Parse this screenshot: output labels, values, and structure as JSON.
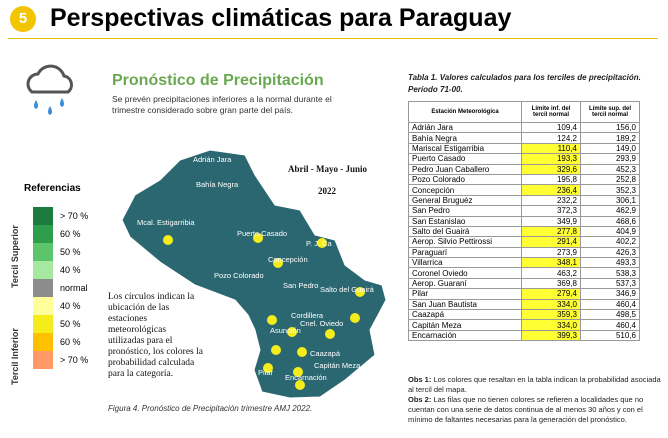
{
  "header": {
    "number": "5",
    "title": "Perspectivas climáticas para Paraguay"
  },
  "forecast": {
    "title": "Pronóstico de Precipitación",
    "description": "Se prevén precipitaciones inferiores a la normal durante el trimestre considerado sobre gran parte del país."
  },
  "map": {
    "period": "Abril - Mayo - Junio",
    "year": "2022",
    "labels": [
      "Adrián Jara",
      "Bahía Negra",
      "Mcal. Estigarribia",
      "Puerto Casado",
      "P. J. Ca",
      "Concepción",
      "Pozo Colorado",
      "San Pedro",
      "Salto del Guairá",
      "Cordillera",
      "Asunción",
      "Cnel. Oviedo",
      "Caazapá",
      "Capitán Meza",
      "Pilar",
      "Encarnación"
    ],
    "note": [
      "Los círculos indican la",
      "ubicación de las",
      "estaciones",
      "meteorológicas",
      "utilizadas para el",
      "pronóstico, los colores la",
      "probabilidad calculada",
      "para la categoría."
    ],
    "caption": "Figura 4. Pronóstico de Precipitación trimestre AMJ 2022."
  },
  "references": {
    "title": "Referencias",
    "upper_label": "Tercil Superior",
    "lower_label": "Tercil Inferior",
    "items": [
      {
        "label": "> 70 %",
        "color": "#1b7a3c"
      },
      {
        "label": "60 %",
        "color": "#2f9e4c"
      },
      {
        "label": "50 %",
        "color": "#5cc46a"
      },
      {
        "label": "40 %",
        "color": "#a6e8a0"
      },
      {
        "label": "normal",
        "color": "#8c8c8c"
      },
      {
        "label": "40 %",
        "color": "#ffff99"
      },
      {
        "label": "50 %",
        "color": "#f5ec1c"
      },
      {
        "label": "60 %",
        "color": "#ffc000"
      },
      {
        "label": "> 70 %",
        "color": "#ff9966"
      }
    ]
  },
  "table": {
    "title": "Tabla 1. Valores calculados para los terciles de precipitación. Período 71-00.",
    "headers": [
      "Estación Meteorológica",
      "Límite inf. del tercil normal",
      "Límite sup. del tercil normal"
    ],
    "highlight_color": "#ffff33",
    "rows": [
      {
        "station": "Adrián Jara",
        "lower": "109,4",
        "upper": "156,0",
        "highlight": false
      },
      {
        "station": "Bahía Negra",
        "lower": "124,2",
        "upper": "189,2",
        "highlight": false
      },
      {
        "station": "Mariscal Estigarribia",
        "lower": "110,4",
        "upper": "149,0",
        "highlight": true
      },
      {
        "station": "Puerto Casado",
        "lower": "193,3",
        "upper": "293,9",
        "highlight": true
      },
      {
        "station": "Pedro Juan Caballero",
        "lower": "329,6",
        "upper": "452,3",
        "highlight": true
      },
      {
        "station": "Pozo Colorado",
        "lower": "195,8",
        "upper": "252,8",
        "highlight": false
      },
      {
        "station": "Concepción",
        "lower": "236,4",
        "upper": "352,3",
        "highlight": true
      },
      {
        "station": "General Bruguéz",
        "lower": "232,2",
        "upper": "306,1",
        "highlight": false
      },
      {
        "station": "San Pedro",
        "lower": "372,3",
        "upper": "462,9",
        "highlight": false
      },
      {
        "station": "San Estanislao",
        "lower": "349,9",
        "upper": "468,6",
        "highlight": false
      },
      {
        "station": "Salto del Guairá",
        "lower": "277,8",
        "upper": "404,9",
        "highlight": true
      },
      {
        "station": "Aerop. Silvio Pettirossi",
        "lower": "291,4",
        "upper": "402,2",
        "highlight": true
      },
      {
        "station": "Paraguarí",
        "lower": "273,9",
        "upper": "426,3",
        "highlight": false
      },
      {
        "station": "Villarrica",
        "lower": "348,1",
        "upper": "493,3",
        "highlight": true
      },
      {
        "station": "Coronel Oviedo",
        "lower": "463,2",
        "upper": "538,3",
        "highlight": false
      },
      {
        "station": "Aerop. Guaraní",
        "lower": "369,8",
        "upper": "537,3",
        "highlight": false
      },
      {
        "station": "Pilar",
        "lower": "279,4",
        "upper": "346,9",
        "highlight": true
      },
      {
        "station": "San Juan Bautista",
        "lower": "334,0",
        "upper": "460,4",
        "highlight": true
      },
      {
        "station": "Caazapá",
        "lower": "359,3",
        "upper": "498,5",
        "highlight": true
      },
      {
        "station": "Capitán Meza",
        "lower": "334,0",
        "upper": "460,4",
        "highlight": true
      },
      {
        "station": "Encarnación",
        "lower": "399,3",
        "upper": "510,6",
        "highlight": true
      }
    ],
    "notes": [
      {
        "label": "Obs 1:",
        "text": "Los colores que resaltan en la tabla indican la probabilidad asociada al tercil del mapa."
      },
      {
        "label": "Obs 2:",
        "text": "Las filas que no tienen colores se refieren a localidades que no cuentan con una serie de datos continua de al menos 30 años y con el mínimo de faltantes necesarias para la generación del pronóstico."
      }
    ]
  }
}
